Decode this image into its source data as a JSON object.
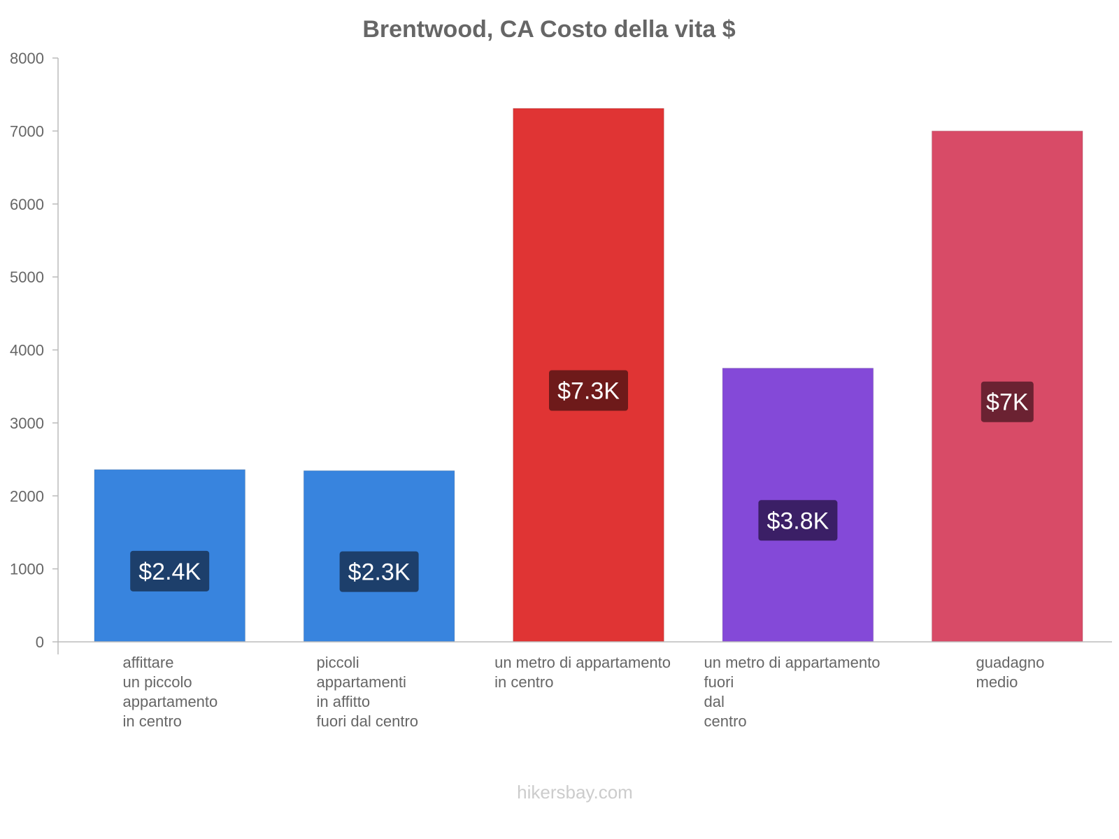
{
  "chart_data": {
    "type": "bar",
    "title": "Brentwood, CA Costo della vita $",
    "xlabel": "",
    "ylabel": "",
    "ylim": [
      0,
      8000
    ],
    "yticks": [
      0,
      1000,
      2000,
      3000,
      4000,
      5000,
      6000,
      7000,
      8000
    ],
    "grid": false,
    "categories": [
      [
        "affittare",
        "un piccolo",
        "appartamento",
        "in centro"
      ],
      [
        "piccoli",
        "appartamenti",
        "in affitto",
        "fuori dal centro"
      ],
      [
        "un metro di appartamento",
        "in centro"
      ],
      [
        "un metro di appartamento",
        "fuori",
        "dal",
        "centro"
      ],
      [
        "guadagno",
        "medio"
      ]
    ],
    "values": [
      2360,
      2345,
      7310,
      3750,
      7000
    ],
    "data_labels": [
      "$2.4K",
      "$2.3K",
      "$7.3K",
      "$3.8K",
      "$7K"
    ],
    "bar_colors": [
      "#3884de",
      "#3884de",
      "#e03434",
      "#8449d8",
      "#d84b67"
    ],
    "label_bg_colors": [
      "#1d3f6b",
      "#1d3f6b",
      "#6e1a1a",
      "#3b1f66",
      "#6b2232"
    ]
  },
  "footer": {
    "source": "hikersbay.com"
  }
}
